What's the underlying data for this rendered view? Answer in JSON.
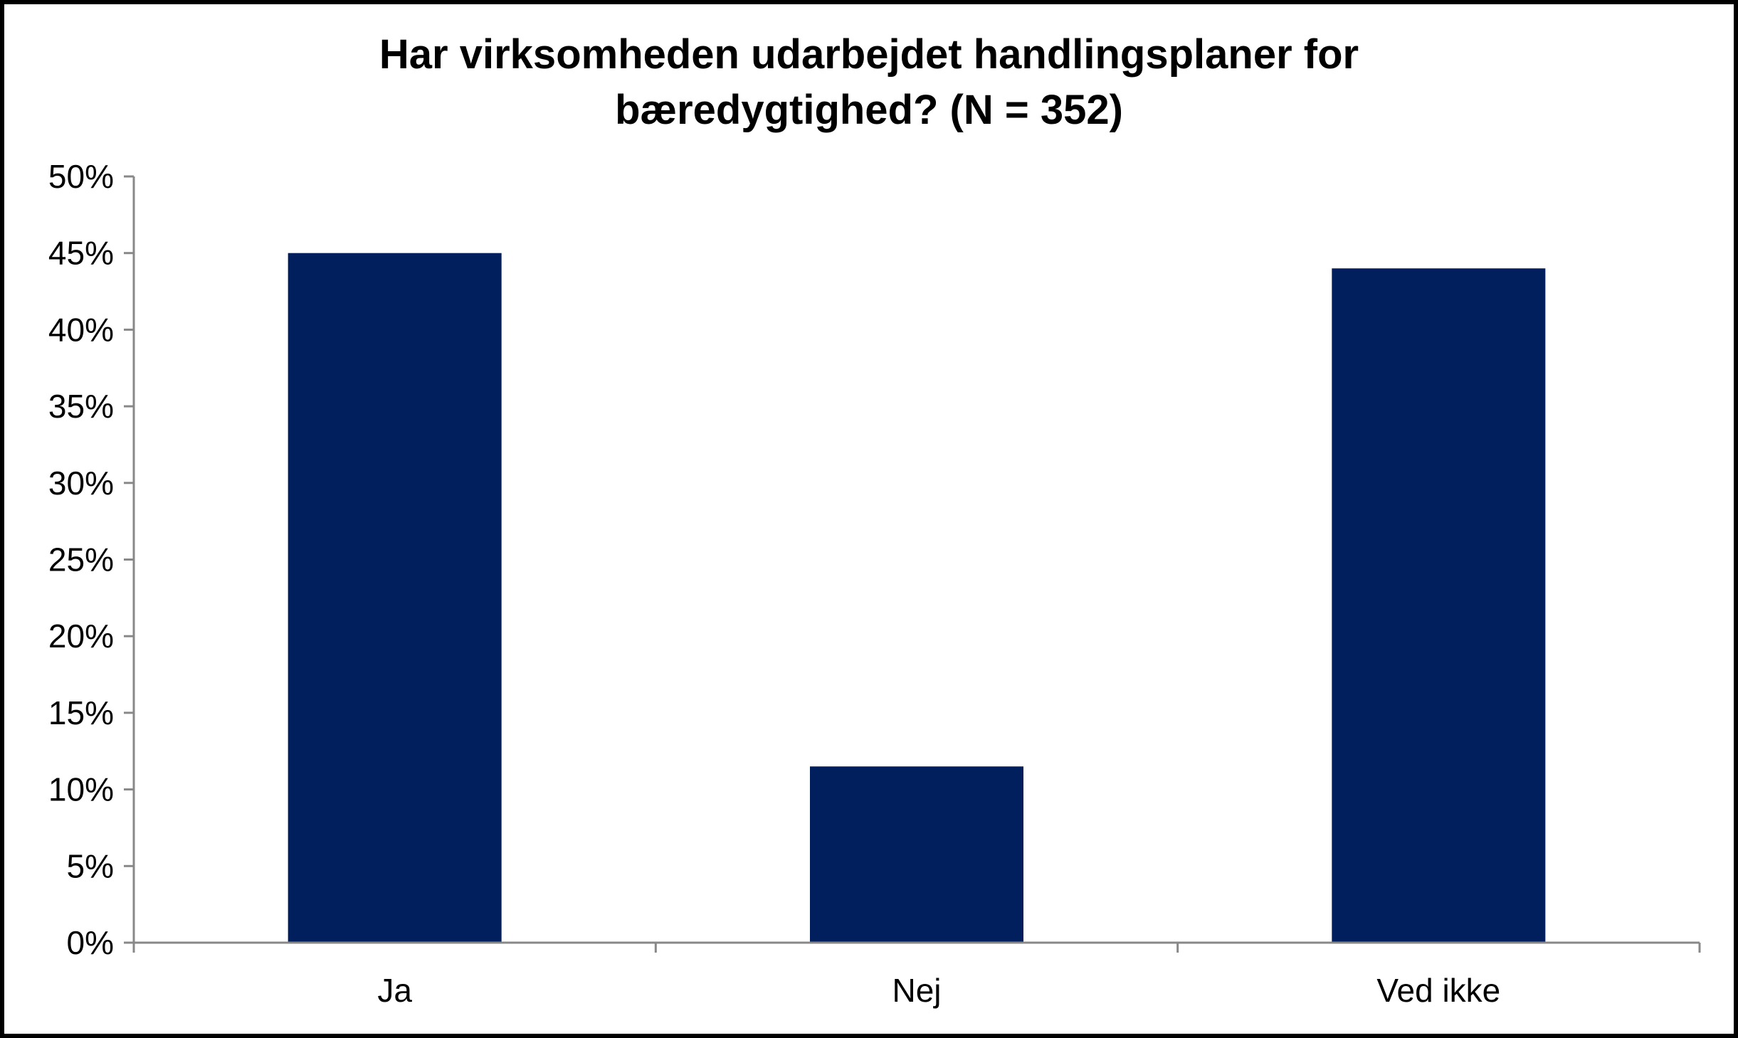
{
  "chart_data": {
    "type": "bar",
    "title_lines": [
      "Har virksomheden udarbejdet handlingsplaner for",
      "bæredygtighed? (N = 352)"
    ],
    "categories": [
      "Ja",
      "Nej",
      "Ved ikke"
    ],
    "values": [
      45,
      11.5,
      44
    ],
    "ylim": [
      0,
      50
    ],
    "yticks": [
      0,
      5,
      10,
      15,
      20,
      25,
      30,
      35,
      40,
      45,
      50
    ],
    "ytick_labels": [
      "0%",
      "5%",
      "10%",
      "15%",
      "20%",
      "25%",
      "30%",
      "35%",
      "40%",
      "45%",
      "50%"
    ],
    "xlabel": "",
    "ylabel": "",
    "grid": false,
    "legend": "none",
    "bar_color": "#021F5D",
    "axis_color": "#888888"
  }
}
